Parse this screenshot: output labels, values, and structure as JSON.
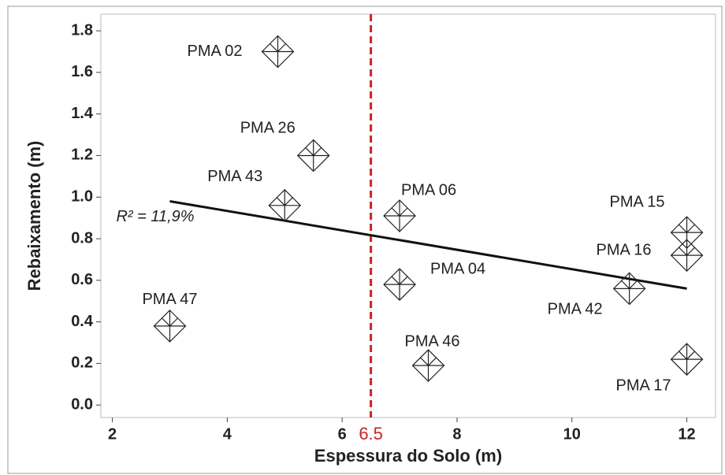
{
  "chart_data": {
    "type": "scatter",
    "xlabel": "Espessura do Solo (m)",
    "ylabel": "Rebaixamento (m)",
    "x": [
      4.88,
      5.5,
      5,
      7,
      7,
      7.5,
      3,
      11,
      12,
      12,
      12
    ],
    "values": [
      1.7,
      1.2,
      0.96,
      0.91,
      0.58,
      0.19,
      0.38,
      0.56,
      0.83,
      0.72,
      0.22
    ],
    "labels": [
      "PMA 02",
      "PMA 26",
      "PMA 43",
      "PMA 06",
      "PMA 04",
      "PMA 46",
      "PMA 47",
      "PMA 42",
      "PMA 15",
      "PMA 16",
      "PMA 17"
    ],
    "color": "#222222",
    "trendline": {
      "x": [
        3,
        12
      ],
      "y": [
        0.98,
        0.56
      ],
      "label": "R² = 11,9%"
    },
    "vline": {
      "value": 6.5,
      "color": "#cc2222"
    },
    "xlim": [
      1.8,
      12.5
    ],
    "ylim": [
      -0.06,
      1.88
    ],
    "xticks": [
      2,
      4,
      6,
      8,
      10,
      12
    ],
    "yticks": [
      {
        "value": 0,
        "label": "0.0"
      },
      0.2,
      0.4,
      0.6,
      0.8,
      {
        "value": 1,
        "label": "1.0"
      },
      1.2,
      1.4,
      1.6,
      1.8
    ]
  }
}
